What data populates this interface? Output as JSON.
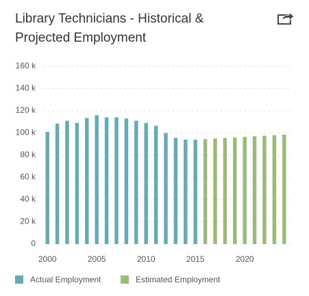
{
  "chart_data": {
    "type": "bar",
    "title": "Library Technicians - Historical & Projected Employment",
    "x": [
      2000,
      2001,
      2002,
      2003,
      2004,
      2005,
      2006,
      2007,
      2008,
      2009,
      2010,
      2011,
      2012,
      2013,
      2014,
      2015,
      2016,
      2017,
      2018,
      2019,
      2020,
      2021,
      2022,
      2023,
      2024
    ],
    "xlim": [
      1999.5,
      2024.5
    ],
    "xticks": [
      2000,
      2005,
      2010,
      2015,
      2020
    ],
    "ylim": [
      0,
      160000
    ],
    "yticks": [
      {
        "value": 0,
        "label": "0"
      },
      {
        "value": 20000,
        "label": "20 k"
      },
      {
        "value": 40000,
        "label": "40 k"
      },
      {
        "value": 60000,
        "label": "60 k"
      },
      {
        "value": 80000,
        "label": "80 k"
      },
      {
        "value": 100000,
        "label": "100 k"
      },
      {
        "value": 120000,
        "label": "120 k"
      },
      {
        "value": 140000,
        "label": "140 k"
      },
      {
        "value": 160000,
        "label": "160 k"
      }
    ],
    "grid": true,
    "series": [
      {
        "name": "Actual Employment",
        "color": "#67abb1",
        "values": [
          101000,
          108500,
          111000,
          109000,
          113500,
          116000,
          114000,
          114000,
          113000,
          111000,
          109000,
          106500,
          100000,
          95500,
          94000,
          94000,
          null,
          null,
          null,
          null,
          null,
          null,
          null,
          null,
          null
        ]
      },
      {
        "name": "Estimated Employment",
        "color": "#9cb97b",
        "values": [
          null,
          null,
          null,
          null,
          null,
          null,
          null,
          null,
          null,
          null,
          null,
          null,
          null,
          null,
          null,
          null,
          94500,
          95000,
          95500,
          96000,
          96500,
          97000,
          97500,
          98000,
          98500
        ]
      }
    ]
  }
}
